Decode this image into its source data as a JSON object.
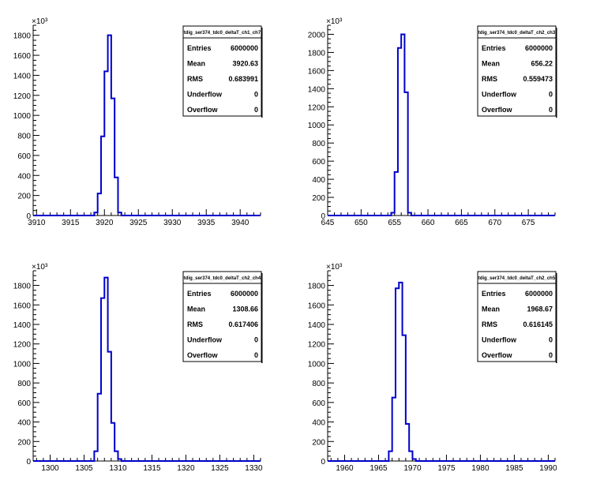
{
  "chart_data": [
    {
      "type": "bar",
      "title": "tdig_ser374_tdc0_deltaT_ch1_ch7",
      "exponent_label": "×10³",
      "xlim": [
        3909.5,
        3943
      ],
      "ylim": [
        0,
        1900
      ],
      "xticks": [
        3910,
        3915,
        3920,
        3925,
        3930,
        3935,
        3940
      ],
      "yticks": [
        0,
        200,
        400,
        600,
        800,
        1000,
        1200,
        1400,
        1600,
        1800
      ],
      "x": [
        3918.5,
        3919,
        3919.5,
        3920,
        3920.5,
        3921,
        3921.5,
        3922,
        3922.5
      ],
      "values": [
        30,
        220,
        790,
        1440,
        1800,
        1170,
        380,
        30,
        0
      ],
      "stats": {
        "Entries": "6000000",
        "Mean": "3920.63",
        "RMS": "0.683991",
        "Underflow": "0",
        "Overflow": "0"
      }
    },
    {
      "type": "bar",
      "title": "tdig_ser374_tdc0_deltaT_ch2_ch3",
      "exponent_label": "×10³",
      "xlim": [
        645,
        679
      ],
      "ylim": [
        0,
        2100
      ],
      "xticks": [
        645,
        650,
        655,
        660,
        665,
        670,
        675
      ],
      "yticks": [
        0,
        200,
        400,
        600,
        800,
        1000,
        1200,
        1400,
        1600,
        1800,
        2000
      ],
      "x": [
        654.5,
        655,
        655.5,
        656,
        656.5,
        657,
        657.5
      ],
      "values": [
        30,
        480,
        1850,
        2000,
        1360,
        30,
        0
      ],
      "stats": {
        "Entries": "6000000",
        "Mean": "656.22",
        "RMS": "0.559473",
        "Underflow": "0",
        "Overflow": "0"
      }
    },
    {
      "type": "bar",
      "title": "tdig_ser374_tdc0_deltaT_ch2_ch4",
      "exponent_label": "×10³",
      "xlim": [
        1297.5,
        1331
      ],
      "ylim": [
        0,
        1950
      ],
      "xticks": [
        1300,
        1305,
        1310,
        1315,
        1320,
        1325,
        1330
      ],
      "yticks": [
        0,
        200,
        400,
        600,
        800,
        1000,
        1200,
        1400,
        1600,
        1800
      ],
      "x": [
        1306.5,
        1307,
        1307.5,
        1308,
        1308.5,
        1309,
        1309.5,
        1310,
        1310.5
      ],
      "values": [
        100,
        690,
        1670,
        1880,
        1120,
        390,
        100,
        20,
        0
      ],
      "stats": {
        "Entries": "6000000",
        "Mean": "1308.66",
        "RMS": "0.617406",
        "Underflow": "0",
        "Overflow": "0"
      }
    },
    {
      "type": "bar",
      "title": "tdig_ser374_tdc0_deltaT_ch2_ch5",
      "exponent_label": "×10³",
      "xlim": [
        1957.5,
        1991
      ],
      "ylim": [
        0,
        1950
      ],
      "xticks": [
        1960,
        1965,
        1970,
        1975,
        1980,
        1985,
        1990
      ],
      "yticks": [
        0,
        200,
        400,
        600,
        800,
        1000,
        1200,
        1400,
        1600,
        1800
      ],
      "x": [
        1966.5,
        1967,
        1967.5,
        1968,
        1968.5,
        1969,
        1969.5,
        1970,
        1970.5
      ],
      "values": [
        100,
        650,
        1770,
        1830,
        1290,
        380,
        100,
        20,
        0
      ],
      "stats": {
        "Entries": "6000000",
        "Mean": "1968.67",
        "RMS": "0.616145",
        "Underflow": "0",
        "Overflow": "0"
      }
    }
  ],
  "colors": {
    "histogram": "#0000cc",
    "axis": "#000000",
    "background": "#ffffff"
  }
}
